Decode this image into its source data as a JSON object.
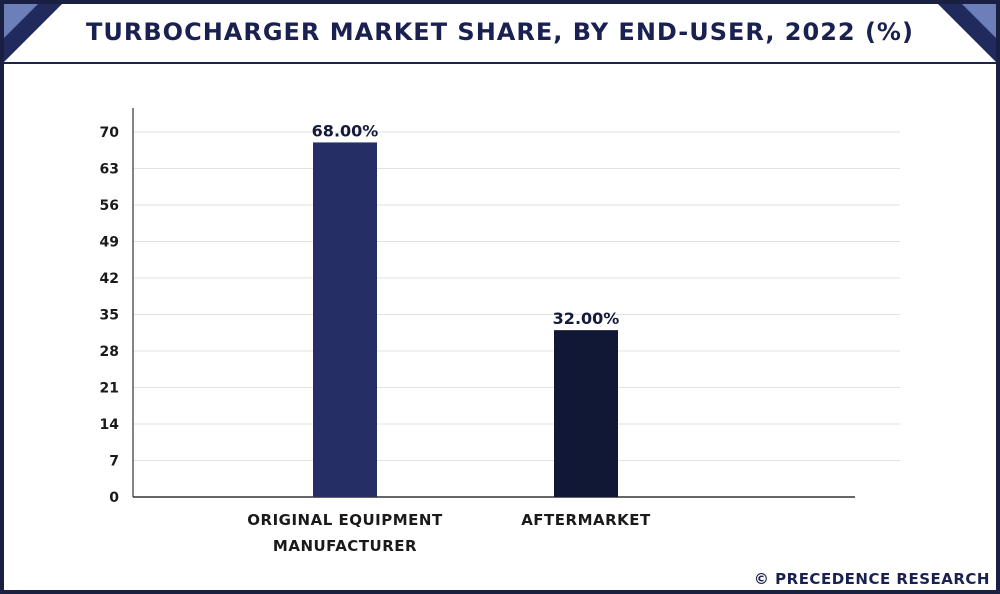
{
  "title": "TURBOCHARGER MARKET SHARE, BY END-USER, 2022 (%)",
  "footer": "© PRECEDENCE RESEARCH",
  "colors": {
    "frame": "#1a2042",
    "bar_oem": "#262e66",
    "bar_aftermarket": "#111836",
    "grid": "#e2e2e2",
    "axis": "#333333"
  },
  "chart_data": {
    "type": "bar",
    "title": "TURBOCHARGER MARKET SHARE, BY END-USER, 2022 (%)",
    "categories": [
      {
        "line1": "ORIGINAL EQUIPMENT",
        "line2": "MANUFACTURER"
      },
      {
        "line1": "AFTERMARKET",
        "line2": ""
      }
    ],
    "values": [
      68.0,
      32.0
    ],
    "value_labels": [
      "68.00%",
      "32.00%"
    ],
    "ylim": [
      0,
      70
    ],
    "yticks": [
      "0",
      "7",
      "14",
      "21",
      "28",
      "35",
      "42",
      "49",
      "56",
      "63",
      "70"
    ],
    "grid": true,
    "xlabel": "",
    "ylabel": ""
  }
}
